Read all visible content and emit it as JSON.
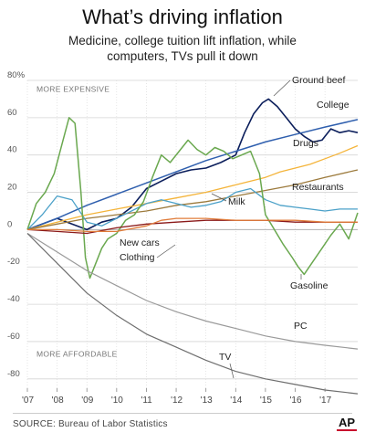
{
  "header": {
    "title": "What’s driving inflation",
    "subtitle_line1": "Medicine, college tuition lift inflation, while",
    "subtitle_line2": "computers, TVs pull it down"
  },
  "footer": {
    "source": "SOURCE:  Bureau of Labor Statistics",
    "logo": "AP"
  },
  "colors": {
    "ground_beef": "#0b1e5b",
    "college": "#2f5fae",
    "drugs": "#f4b43a",
    "restaurants": "#9c7a3c",
    "milk": "#4aa0c8",
    "gasoline": "#6aa84f",
    "new_cars": "#8b1a1a",
    "clothing": "#e07b39",
    "pc": "#9a9a9a",
    "tv": "#6e6e6e",
    "grid": "#d5d5d5",
    "zero": "#b0b0b0"
  },
  "chart_data": {
    "type": "line",
    "title": "What’s driving inflation",
    "x_ticks": [
      "'07",
      "'08",
      "'09",
      "'10",
      "'11",
      "'12",
      "'13",
      "'14",
      "'15",
      "'16",
      "'17"
    ],
    "y_ticks": [
      "80%",
      "60",
      "40",
      "20",
      "0",
      "-20",
      "-40",
      "-60",
      "-80"
    ],
    "y_tick_values": [
      80,
      60,
      40,
      20,
      0,
      -20,
      -40,
      -60,
      -80
    ],
    "ylim": [
      -85,
      80
    ],
    "xlim": [
      2007,
      2018.1
    ],
    "grid": true,
    "annotations": {
      "more_expensive": "MORE EXPENSIVE",
      "more_affordable": "MORE AFFORDABLE"
    },
    "series": [
      {
        "name": "Ground beef",
        "color_key": "ground_beef",
        "x": [
          2007,
          2007.5,
          2008,
          2008.5,
          2009,
          2009.5,
          2010,
          2010.5,
          2011,
          2011.5,
          2012,
          2012.5,
          2013,
          2013.5,
          2014,
          2014.3,
          2014.6,
          2014.9,
          2015.1,
          2015.4,
          2015.7,
          2016,
          2016.3,
          2016.6,
          2016.9,
          2017.2,
          2017.5,
          2017.8,
          2018.1
        ],
        "y": [
          0,
          3,
          6,
          3,
          0,
          4,
          6,
          12,
          22,
          26,
          30,
          32,
          33,
          36,
          40,
          52,
          62,
          68,
          70,
          66,
          60,
          54,
          50,
          47,
          48,
          54,
          52,
          53,
          52
        ]
      },
      {
        "name": "College",
        "color_key": "college",
        "x": [
          2007,
          2008,
          2009,
          2010,
          2011,
          2012,
          2013,
          2014,
          2015,
          2016,
          2017,
          2018.1
        ],
        "y": [
          0,
          6,
          13,
          19,
          25,
          31,
          37,
          42,
          47,
          51,
          55,
          59
        ]
      },
      {
        "name": "Drugs",
        "color_key": "drugs",
        "x": [
          2007,
          2008,
          2009,
          2010,
          2011,
          2012,
          2013,
          2014,
          2015,
          2015.5,
          2016,
          2016.5,
          2017,
          2017.5,
          2018.1
        ],
        "y": [
          0,
          4,
          8,
          11,
          14,
          17,
          20,
          24,
          28,
          31,
          33,
          35,
          38,
          41,
          45
        ]
      },
      {
        "name": "Restaurants",
        "color_key": "restaurants",
        "x": [
          2007,
          2008,
          2009,
          2010,
          2011,
          2012,
          2013,
          2014,
          2015,
          2016,
          2017,
          2018.1
        ],
        "y": [
          0,
          3,
          6,
          8,
          10,
          13,
          15,
          18,
          21,
          24,
          28,
          32
        ]
      },
      {
        "name": "Milk",
        "color_key": "milk",
        "x": [
          2007,
          2007.5,
          2008,
          2008.5,
          2009,
          2009.5,
          2010,
          2010.5,
          2011,
          2011.5,
          2012,
          2012.5,
          2013,
          2013.5,
          2014,
          2014.5,
          2015,
          2015.5,
          2016,
          2016.5,
          2017,
          2017.5,
          2018.1
        ],
        "y": [
          0,
          8,
          18,
          16,
          4,
          2,
          6,
          10,
          14,
          16,
          14,
          12,
          13,
          15,
          20,
          22,
          16,
          13,
          12,
          11,
          10,
          11,
          11
        ]
      },
      {
        "name": "Gasoline",
        "color_key": "gasoline",
        "x": [
          2007,
          2007.3,
          2007.6,
          2007.9,
          2008.2,
          2008.4,
          2008.6,
          2008.8,
          2008.95,
          2009.1,
          2009.3,
          2009.5,
          2009.7,
          2010,
          2010.3,
          2010.6,
          2010.9,
          2011.2,
          2011.5,
          2011.8,
          2012.1,
          2012.4,
          2012.7,
          2013,
          2013.3,
          2013.6,
          2013.9,
          2014.2,
          2014.5,
          2014.8,
          2015,
          2015.3,
          2015.6,
          2015.9,
          2016.1,
          2016.3,
          2016.6,
          2016.9,
          2017.2,
          2017.5,
          2017.8,
          2018.1
        ],
        "y": [
          0,
          14,
          20,
          30,
          48,
          60,
          57,
          20,
          -15,
          -26,
          -18,
          -10,
          -5,
          -2,
          5,
          8,
          15,
          28,
          40,
          36,
          42,
          48,
          43,
          40,
          44,
          42,
          38,
          40,
          42,
          30,
          8,
          0,
          -8,
          -15,
          -20,
          -24,
          -17,
          -10,
          -3,
          3,
          -5,
          9
        ]
      },
      {
        "name": "New cars",
        "color_key": "new_cars",
        "x": [
          2007,
          2008,
          2009,
          2010,
          2011,
          2012,
          2013,
          2014,
          2015,
          2016,
          2017,
          2018.1
        ],
        "y": [
          0,
          -1,
          -2,
          1,
          3,
          4,
          5,
          5,
          5,
          4,
          4,
          4
        ]
      },
      {
        "name": "Clothing",
        "color_key": "clothing",
        "x": [
          2007,
          2008,
          2009,
          2010,
          2011,
          2011.5,
          2012,
          2013,
          2014,
          2015,
          2016,
          2017,
          2018.1
        ],
        "y": [
          0,
          0,
          -1,
          -1,
          2,
          5,
          6,
          6,
          5,
          5,
          5,
          4,
          4
        ]
      },
      {
        "name": "PC",
        "color_key": "pc",
        "x": [
          2007,
          2008,
          2009,
          2010,
          2011,
          2012,
          2013,
          2014,
          2015,
          2016,
          2017,
          2018.1
        ],
        "y": [
          -2,
          -12,
          -22,
          -30,
          -38,
          -44,
          -49,
          -53,
          -57,
          -60,
          -62,
          -64
        ]
      },
      {
        "name": "TV",
        "color_key": "tv",
        "x": [
          2007,
          2008,
          2009,
          2010,
          2011,
          2012,
          2013,
          2014,
          2015,
          2016,
          2017,
          2018.1
        ],
        "y": [
          -2,
          -18,
          -34,
          -46,
          -56,
          -63,
          -70,
          -76,
          -80,
          -83,
          -86,
          -88
        ]
      }
    ],
    "series_labels": [
      "Ground beef",
      "College",
      "Drugs",
      "Restaurants",
      "Milk",
      "New cars",
      "Clothing",
      "Gasoline",
      "PC",
      "TV"
    ]
  }
}
